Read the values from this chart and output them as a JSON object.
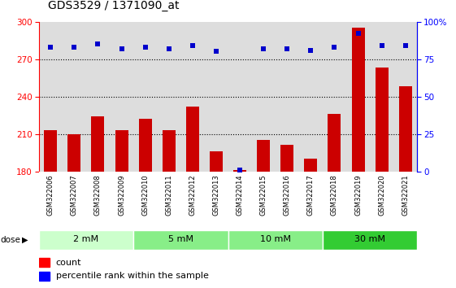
{
  "title": "GDS3529 / 1371090_at",
  "categories": [
    "GSM322006",
    "GSM322007",
    "GSM322008",
    "GSM322009",
    "GSM322010",
    "GSM322011",
    "GSM322012",
    "GSM322013",
    "GSM322014",
    "GSM322015",
    "GSM322016",
    "GSM322017",
    "GSM322018",
    "GSM322019",
    "GSM322020",
    "GSM322021"
  ],
  "bar_values": [
    213,
    210,
    224,
    213,
    222,
    213,
    232,
    196,
    181,
    205,
    201,
    190,
    226,
    295,
    263,
    248
  ],
  "dot_values": [
    83,
    83,
    85,
    82,
    83,
    82,
    84,
    80,
    1,
    82,
    82,
    81,
    83,
    92,
    84,
    84
  ],
  "bar_color": "#cc0000",
  "dot_color": "#0000cc",
  "ylim_left": [
    180,
    300
  ],
  "ylim_right": [
    0,
    100
  ],
  "yticks_left": [
    180,
    210,
    240,
    270,
    300
  ],
  "yticks_right": [
    0,
    25,
    50,
    75,
    100
  ],
  "yticklabels_right": [
    "0",
    "25",
    "50",
    "75",
    "100%"
  ],
  "bg_color": "#dddddd",
  "dotted_lines": [
    210,
    240,
    270
  ],
  "dose_groups": [
    {
      "label": "2 mM",
      "start": 0,
      "end": 3,
      "color": "#ccffcc"
    },
    {
      "label": "5 mM",
      "start": 4,
      "end": 7,
      "color": "#88ee88"
    },
    {
      "label": "10 mM",
      "start": 8,
      "end": 11,
      "color": "#88ee88"
    },
    {
      "label": "30 mM",
      "start": 12,
      "end": 15,
      "color": "#33cc33"
    }
  ],
  "legend_count_label": "count",
  "legend_pct_label": "percentile rank within the sample",
  "title_fontsize": 10,
  "tick_fontsize": 7.5,
  "label_fontsize": 8
}
